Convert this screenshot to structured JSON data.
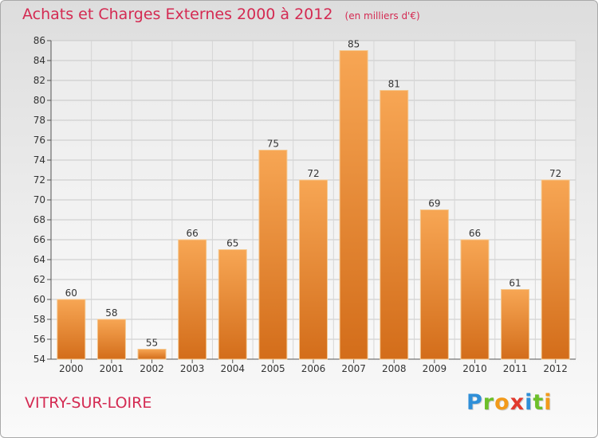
{
  "page": {
    "title": "Achats et Charges Externes 2000 à 2012",
    "unit_note": "(en milliers d'€)",
    "commune": "VITRY-SUR-LOIRE",
    "logo_letters": [
      {
        "char": "P",
        "color": "#2f8fd8"
      },
      {
        "char": "r",
        "color": "#6cbf2a"
      },
      {
        "char": "o",
        "color": "#f29a1a"
      },
      {
        "char": "x",
        "color": "#e23a2e"
      },
      {
        "char": "i",
        "color": "#2f8fd8"
      },
      {
        "char": "t",
        "color": "#6cbf2a"
      },
      {
        "char": "i",
        "color": "#f29a1a"
      }
    ]
  },
  "chart_data": {
    "type": "bar",
    "categories": [
      "2000",
      "2001",
      "2002",
      "2003",
      "2004",
      "2005",
      "2006",
      "2007",
      "2008",
      "2009",
      "2010",
      "2011",
      "2012"
    ],
    "values": [
      60,
      58,
      55,
      66,
      65,
      75,
      72,
      85,
      81,
      69,
      66,
      61,
      72
    ],
    "ylim": [
      54,
      86
    ],
    "yticks": [
      54,
      56,
      58,
      60,
      62,
      64,
      66,
      68,
      70,
      72,
      74,
      76,
      78,
      80,
      82,
      84,
      86
    ],
    "grid": true,
    "bar_color_top": "#f7a654",
    "bar_color_bottom": "#d36d1a"
  }
}
